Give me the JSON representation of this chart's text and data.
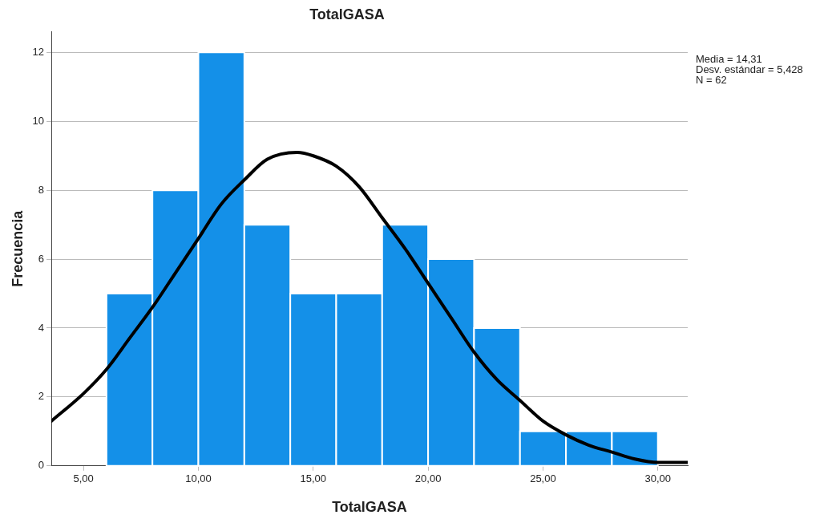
{
  "chart_data": {
    "type": "histogram",
    "title": "TotalGASA",
    "xlabel": "TotalGASA",
    "ylabel": "Frecuencia",
    "bins": [
      6,
      8,
      10,
      12,
      14,
      16,
      18,
      20,
      22,
      24,
      26,
      28,
      30
    ],
    "values": [
      5,
      8,
      12,
      7,
      5,
      5,
      7,
      6,
      4,
      1,
      1,
      1
    ],
    "color": "#1490e8",
    "series": [
      {
        "type": "line",
        "color": "#000000",
        "x": [
          3.6,
          5,
          6,
          7,
          8,
          9,
          10,
          11,
          12,
          13,
          14.3,
          15,
          16,
          17,
          18,
          19,
          20,
          21,
          22,
          23,
          24,
          25,
          26,
          27,
          28,
          29,
          30,
          31.3
        ],
        "values": [
          1.3,
          2.1,
          2.8,
          3.7,
          4.6,
          5.6,
          6.6,
          7.6,
          8.3,
          8.9,
          9.1,
          9.0,
          8.7,
          8.1,
          7.2,
          6.3,
          5.3,
          4.3,
          3.3,
          2.5,
          1.9,
          1.3,
          0.9,
          0.6,
          0.4,
          0.2,
          0.1,
          0.1
        ]
      }
    ],
    "xlim": [
      3.6,
      31.3
    ],
    "xticks": [
      {
        "value": 5,
        "label": "5,00"
      },
      {
        "value": 10,
        "label": "10,00"
      },
      {
        "value": 15,
        "label": "15,00"
      },
      {
        "value": 20,
        "label": "20,00"
      },
      {
        "value": 25,
        "label": "25,00"
      },
      {
        "value": 30,
        "label": "30,00"
      }
    ],
    "ylim": [
      0,
      12.6
    ],
    "yticks": [
      0,
      2,
      4,
      6,
      8,
      10,
      12
    ],
    "grid": "y",
    "legend": false,
    "annotations": [
      "Media = 14,31",
      "Desv. estándar = 5,428",
      "N = 62"
    ]
  }
}
